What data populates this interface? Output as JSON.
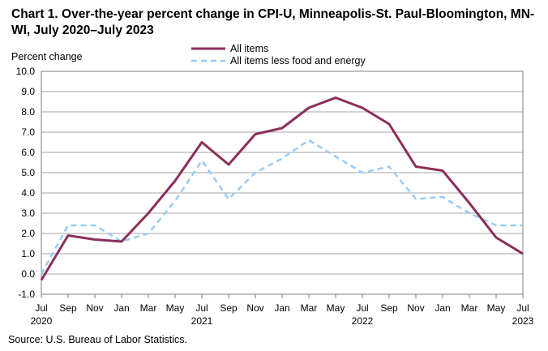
{
  "chart_data": {
    "type": "line",
    "title": "Chart 1. Over-the-year percent change in CPI-U, Minneapolis-St. Paul-Bloomington, MN-WI, July 2020–July 2023",
    "ylabel": "Percent change",
    "xlabel": "",
    "ylim": [
      -1.0,
      10.0
    ],
    "yticks": [
      "-1.0",
      "0.0",
      "1.0",
      "2.0",
      "3.0",
      "4.0",
      "5.0",
      "6.0",
      "7.0",
      "8.0",
      "9.0",
      "10.0"
    ],
    "grid": true,
    "legend_position": "top-center",
    "x": [
      "Jul 2020",
      "Sep 2020",
      "Nov 2020",
      "Jan 2021",
      "Mar 2021",
      "May 2021",
      "Jul 2021",
      "Sep 2021",
      "Nov 2021",
      "Jan 2022",
      "Mar 2022",
      "May 2022",
      "Jul 2022",
      "Sep 2022",
      "Nov 2022",
      "Jan 2023",
      "Mar 2023",
      "May 2023",
      "Jul 2023"
    ],
    "xtick_months": [
      "Jul",
      "Sep",
      "Nov",
      "Jan",
      "Mar",
      "May",
      "Jul",
      "Sep",
      "Nov",
      "Jan",
      "Mar",
      "May",
      "Jul",
      "Sep",
      "Nov",
      "Jan",
      "Mar",
      "May",
      "Jul"
    ],
    "xtick_years": [
      "2020",
      "",
      "",
      "",
      "",
      "",
      "2021",
      "",
      "",
      "",
      "",
      "",
      "2022",
      "",
      "",
      "",
      "",
      "",
      "2023"
    ],
    "series": [
      {
        "name": "All items",
        "color": "#8B2F5C",
        "style": "solid",
        "values": [
          -0.3,
          1.9,
          1.7,
          1.6,
          3.0,
          4.6,
          6.5,
          5.4,
          6.9,
          7.2,
          8.2,
          8.7,
          8.2,
          7.4,
          5.3,
          5.1,
          3.5,
          1.8,
          1.0
        ]
      },
      {
        "name": "All items less food and energy",
        "color": "#99CCF5",
        "style": "dashed",
        "values": [
          0.0,
          2.4,
          2.4,
          1.6,
          2.0,
          3.6,
          5.6,
          3.7,
          5.0,
          5.7,
          6.6,
          5.8,
          5.0,
          5.3,
          3.7,
          3.8,
          3.0,
          2.4,
          2.4
        ]
      }
    ]
  },
  "source": "Source: U.S. Bureau of Labor Statistics."
}
